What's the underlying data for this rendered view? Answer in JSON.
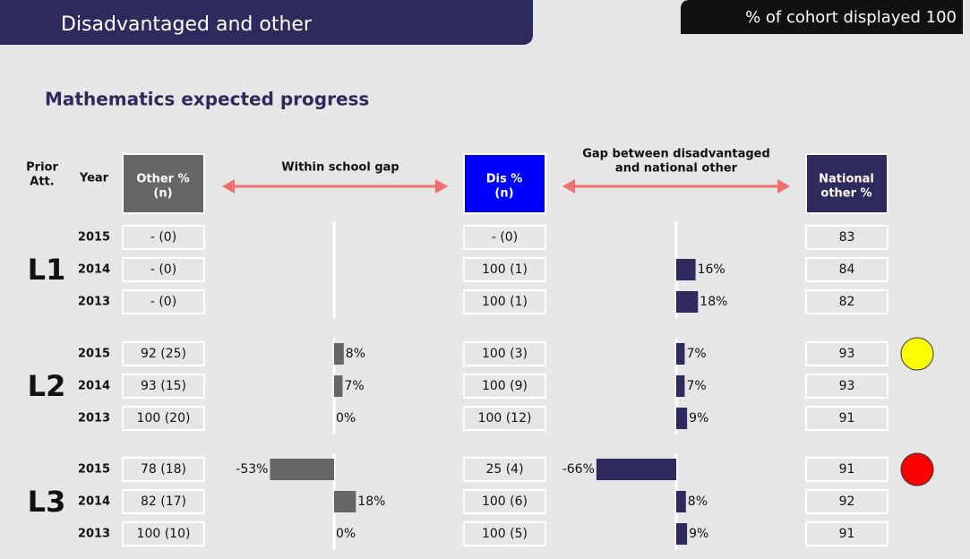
{
  "header": {
    "title": "Disadvantaged and other",
    "cohort": "% of cohort displayed 100"
  },
  "subtitle": "Mathematics expected progress",
  "columns": {
    "prior": [
      "Prior",
      "Att."
    ],
    "year": "Year",
    "other": [
      "Other %",
      "(n)"
    ],
    "within_gap": "Within school gap",
    "dis": [
      "Dis %",
      "(n)"
    ],
    "national_gap": [
      "Gap between disadvantaged",
      "and national other"
    ],
    "national": [
      "National",
      "other %"
    ]
  },
  "groups": [
    {
      "label": "L1",
      "rows": [
        {
          "year": "2015",
          "other": "- (0)",
          "dis": "- (0)",
          "national": 83
        },
        {
          "year": "2014",
          "other": "- (0)",
          "dis": "100 (1)",
          "national_gap": 16,
          "national_gap_label": "16%",
          "national": 84
        },
        {
          "year": "2013",
          "other": "- (0)",
          "dis": "100 (1)",
          "national_gap": 18,
          "national_gap_label": "18%",
          "national": 82
        }
      ]
    },
    {
      "label": "L2",
      "indicator": "#ffff00",
      "rows": [
        {
          "year": "2015",
          "other": "92 (25)",
          "within_gap": 8,
          "within_gap_label": "8%",
          "dis": "100 (3)",
          "national_gap": 7,
          "national_gap_label": "7%",
          "national": 93
        },
        {
          "year": "2014",
          "other": "93 (15)",
          "within_gap": 7,
          "within_gap_label": "7%",
          "dis": "100 (9)",
          "national_gap": 7,
          "national_gap_label": "7%",
          "national": 93
        },
        {
          "year": "2013",
          "other": "100 (20)",
          "within_gap": 0,
          "within_gap_label": "0%",
          "dis": "100 (12)",
          "national_gap": 9,
          "national_gap_label": "9%",
          "national": 91
        }
      ]
    },
    {
      "label": "L3",
      "indicator": "#ff0000",
      "rows": [
        {
          "year": "2015",
          "other": "78 (18)",
          "within_gap": -53,
          "within_gap_label": "-53%",
          "dis": "25 (4)",
          "national_gap": -66,
          "national_gap_label": "-66%",
          "national": 91
        },
        {
          "year": "2014",
          "other": "82 (17)",
          "within_gap": 18,
          "within_gap_label": "18%",
          "dis": "100 (6)",
          "national_gap": 8,
          "national_gap_label": "8%",
          "national": 92
        },
        {
          "year": "2013",
          "other": "100 (10)",
          "within_gap": 0,
          "within_gap_label": "0%",
          "dis": "100 (5)",
          "national_gap": 9,
          "national_gap_label": "9%",
          "national": 91
        }
      ]
    }
  ]
}
